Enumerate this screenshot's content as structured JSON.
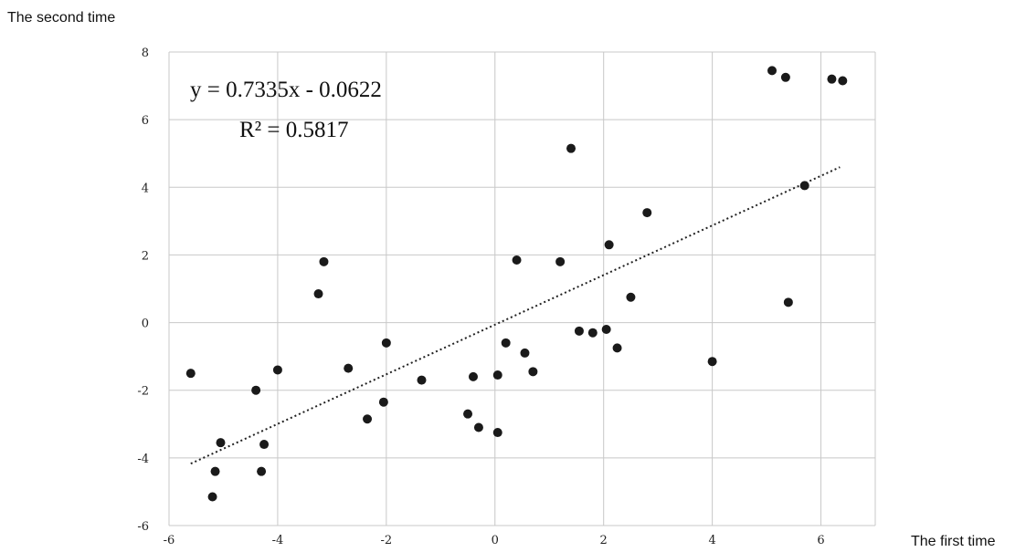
{
  "chart_data": {
    "type": "scatter",
    "title": "",
    "xlabel": "The first time",
    "ylabel": "The second time",
    "xlim": [
      -6,
      7
    ],
    "ylim": [
      -6,
      8
    ],
    "xticks": [
      -6,
      -4,
      -2,
      0,
      2,
      4,
      6
    ],
    "yticks": [
      -6,
      -4,
      -2,
      0,
      2,
      4,
      6,
      8
    ],
    "grid": true,
    "points": [
      {
        "x": -5.6,
        "y": -1.5
      },
      {
        "x": -5.2,
        "y": -5.15
      },
      {
        "x": -5.15,
        "y": -4.4
      },
      {
        "x": -5.05,
        "y": -3.55
      },
      {
        "x": -4.4,
        "y": -2.0
      },
      {
        "x": -4.3,
        "y": -4.4
      },
      {
        "x": -4.25,
        "y": -3.6
      },
      {
        "x": -4.0,
        "y": -1.4
      },
      {
        "x": -3.25,
        "y": 0.85
      },
      {
        "x": -3.15,
        "y": 1.8
      },
      {
        "x": -2.7,
        "y": -1.35
      },
      {
        "x": -2.35,
        "y": -2.85
      },
      {
        "x": -2.0,
        "y": -0.6
      },
      {
        "x": -2.05,
        "y": -2.35
      },
      {
        "x": -1.35,
        "y": -1.7
      },
      {
        "x": -0.5,
        "y": -2.7
      },
      {
        "x": -0.4,
        "y": -1.6
      },
      {
        "x": -0.3,
        "y": -3.1
      },
      {
        "x": 0.05,
        "y": -3.25
      },
      {
        "x": 0.05,
        "y": -1.55
      },
      {
        "x": 0.2,
        "y": -0.6
      },
      {
        "x": 0.4,
        "y": 1.85
      },
      {
        "x": 0.55,
        "y": -0.9
      },
      {
        "x": 0.7,
        "y": -1.45
      },
      {
        "x": 1.2,
        "y": 1.8
      },
      {
        "x": 1.4,
        "y": 5.15
      },
      {
        "x": 1.55,
        "y": -0.25
      },
      {
        "x": 1.8,
        "y": -0.3
      },
      {
        "x": 2.05,
        "y": -0.2
      },
      {
        "x": 2.1,
        "y": 2.3
      },
      {
        "x": 2.25,
        "y": -0.75
      },
      {
        "x": 2.5,
        "y": 0.75
      },
      {
        "x": 2.8,
        "y": 3.25
      },
      {
        "x": 4.0,
        "y": -1.15
      },
      {
        "x": 5.1,
        "y": 7.45
      },
      {
        "x": 5.35,
        "y": 7.25
      },
      {
        "x": 5.4,
        "y": 0.6
      },
      {
        "x": 5.7,
        "y": 4.05
      },
      {
        "x": 6.2,
        "y": 7.2
      },
      {
        "x": 6.4,
        "y": 7.15
      }
    ],
    "trendline": {
      "slope": 0.7335,
      "intercept": -0.0622,
      "x_range": [
        -5.6,
        6.35
      ],
      "style": "dotted"
    },
    "annotations": {
      "equation": "y = 0.7335x - 0.0622",
      "r_squared": "R² = 0.5817"
    }
  }
}
